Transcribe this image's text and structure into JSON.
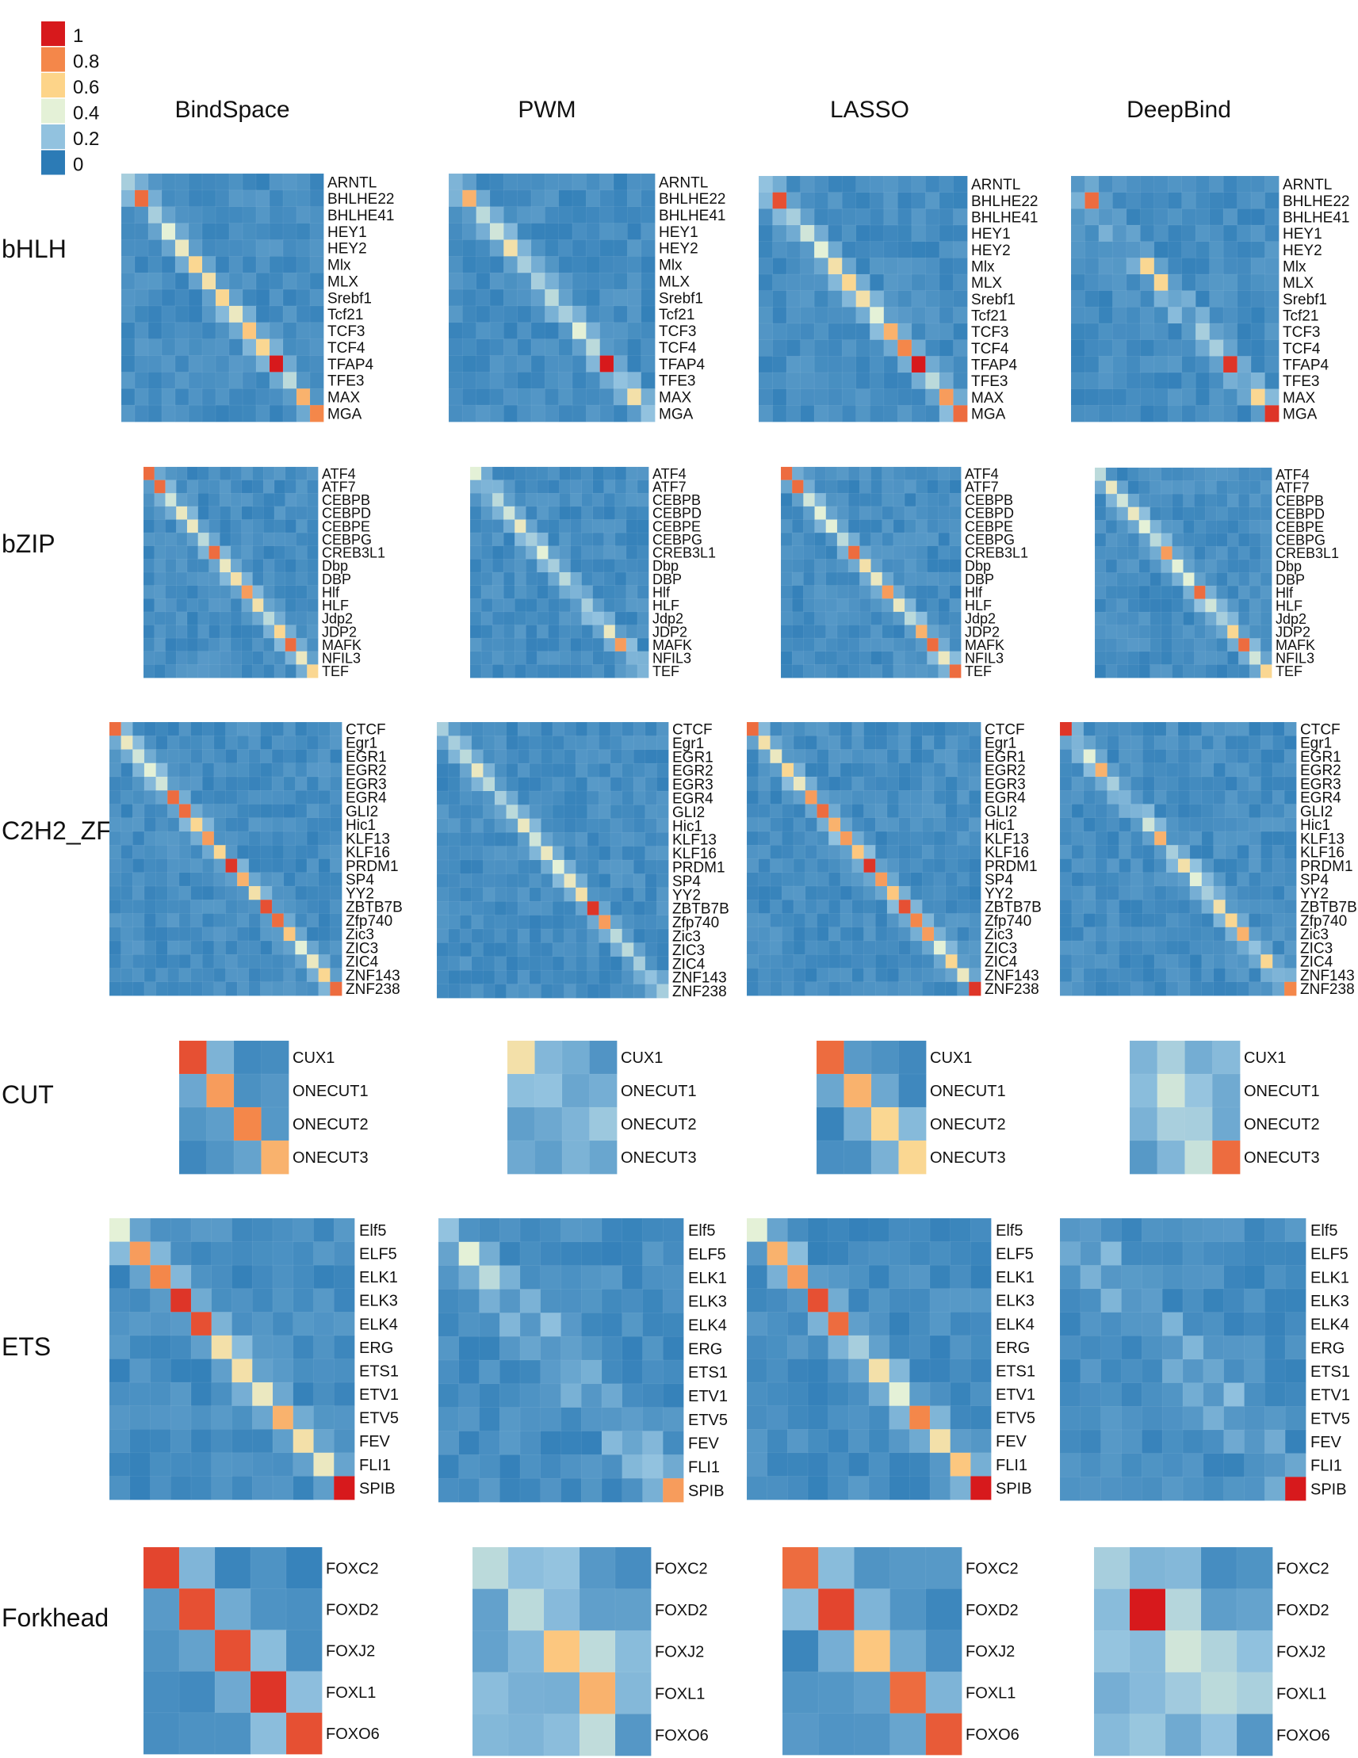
{
  "chart_data": {
    "type": "heatmap",
    "legend": {
      "ticks": [
        "1",
        "0.8",
        "0.6",
        "0.4",
        "0.2",
        "0"
      ],
      "colors": [
        "#d7191c",
        "#f4874a",
        "#fdd489",
        "#e4f1d7",
        "#92c2df",
        "#2c7bb6"
      ],
      "placement": "top-left"
    },
    "methods": [
      "BindSpace",
      "PWM",
      "LASSO",
      "DeepBind"
    ],
    "families": [
      {
        "name": "bHLH",
        "labels": [
          "ARNTL",
          "BHLHE22",
          "BHLHE41",
          "HEY1",
          "HEY2",
          "Mlx",
          "MLX",
          "Srebf1",
          "Tcf21",
          "TCF3",
          "TCF4",
          "TFAP4",
          "TFE3",
          "MAX",
          "MGA"
        ],
        "diag": [
          [
            0.3,
            0.85,
            0.3,
            0.45,
            0.5,
            0.6,
            0.55,
            0.6,
            0.5,
            0.65,
            0.6,
            1.0,
            0.35,
            0.7,
            0.8
          ],
          [
            0.2,
            0.7,
            0.35,
            0.4,
            0.55,
            0.3,
            0.3,
            0.35,
            0.3,
            0.45,
            0.35,
            1.0,
            0.25,
            0.55,
            0.25
          ],
          [
            0.25,
            0.9,
            0.3,
            0.4,
            0.45,
            0.55,
            0.6,
            0.55,
            0.45,
            0.7,
            0.8,
            1.0,
            0.35,
            0.75,
            0.85
          ],
          [
            0.1,
            0.85,
            0.1,
            0.1,
            0.1,
            0.6,
            0.6,
            0.15,
            0.1,
            0.3,
            0.3,
            0.95,
            0.15,
            0.6,
            0.95
          ]
        ]
      },
      {
        "name": "bZIP",
        "labels": [
          "ATF4",
          "ATF7",
          "CEBPB",
          "CEBPD",
          "CEBPE",
          "CEBPG",
          "CREB3L1",
          "Dbp",
          "DBP",
          "Hlf",
          "HLF",
          "Jdp2",
          "JDP2",
          "MAFK",
          "NFIL3",
          "TEF"
        ],
        "diag": [
          [
            0.85,
            0.85,
            0.4,
            0.5,
            0.5,
            0.35,
            0.85,
            0.5,
            0.55,
            0.75,
            0.55,
            0.35,
            0.6,
            0.85,
            0.5,
            0.6
          ],
          [
            0.45,
            0.2,
            0.35,
            0.4,
            0.5,
            0.3,
            0.45,
            0.3,
            0.35,
            0.2,
            0.3,
            0.25,
            0.5,
            0.75,
            0.2,
            0.2
          ],
          [
            0.85,
            0.85,
            0.4,
            0.45,
            0.45,
            0.35,
            0.85,
            0.55,
            0.5,
            0.75,
            0.5,
            0.35,
            0.7,
            0.85,
            0.5,
            0.85
          ],
          [
            0.35,
            0.5,
            0.4,
            0.5,
            0.45,
            0.35,
            0.75,
            0.45,
            0.45,
            0.85,
            0.4,
            0.3,
            0.6,
            0.85,
            0.4,
            0.6
          ]
        ]
      },
      {
        "name": "C2H2_ZF",
        "labels": [
          "CTCF",
          "Egr1",
          "EGR1",
          "EGR2",
          "EGR3",
          "EGR4",
          "GLI2",
          "Hic1",
          "KLF13",
          "KLF16",
          "PRDM1",
          "SP4",
          "YY2",
          "ZBTB7B",
          "Zfp740",
          "Zic3",
          "ZIC3",
          "ZIC4",
          "ZNF143",
          "ZNF238"
        ],
        "diag": [
          [
            0.85,
            0.5,
            0.4,
            0.45,
            0.4,
            0.85,
            0.85,
            0.6,
            0.75,
            0.6,
            0.95,
            0.7,
            0.55,
            0.9,
            0.85,
            0.65,
            0.45,
            0.5,
            0.6,
            0.85
          ],
          [
            0.3,
            0.3,
            0.35,
            0.5,
            0.35,
            0.3,
            0.35,
            0.5,
            0.4,
            0.5,
            0.45,
            0.5,
            0.55,
            0.95,
            0.75,
            0.35,
            0.35,
            0.3,
            0.25,
            0.3
          ],
          [
            0.85,
            0.55,
            0.5,
            0.6,
            0.5,
            0.75,
            0.85,
            0.7,
            0.75,
            0.65,
            0.95,
            0.75,
            0.65,
            0.9,
            0.8,
            0.75,
            0.45,
            0.6,
            0.5,
            0.95
          ],
          [
            0.95,
            0.2,
            0.45,
            0.7,
            0.3,
            0.2,
            0.2,
            0.4,
            0.7,
            0.3,
            0.55,
            0.45,
            0.3,
            0.55,
            0.6,
            0.7,
            0.25,
            0.6,
            0.2,
            0.8
          ]
        ]
      },
      {
        "name": "CUT",
        "labels": [
          "CUX1",
          "ONECUT1",
          "ONECUT2",
          "ONECUT3"
        ],
        "diag": [
          [
            0.9,
            0.75,
            0.8,
            0.7
          ],
          [
            0.55,
            0.25,
            0.2,
            0.15
          ],
          [
            0.85,
            0.7,
            0.6,
            0.6
          ],
          [
            0.2,
            0.4,
            0.3,
            0.85
          ]
        ]
      },
      {
        "name": "ETS",
        "labels": [
          "Elf5",
          "ELF5",
          "ELK1",
          "ELK3",
          "ELK4",
          "ERG",
          "ETS1",
          "ETV1",
          "ETV5",
          "FEV",
          "FLI1",
          "SPIB"
        ],
        "diag": [
          [
            0.45,
            0.75,
            0.8,
            0.95,
            0.9,
            0.55,
            0.55,
            0.5,
            0.7,
            0.55,
            0.5,
            1.0
          ],
          [
            0.25,
            0.45,
            0.35,
            0.1,
            0.1,
            0.1,
            0.15,
            0.1,
            0.1,
            0.15,
            0.25,
            0.75
          ],
          [
            0.45,
            0.7,
            0.75,
            0.9,
            0.85,
            0.3,
            0.55,
            0.45,
            0.8,
            0.55,
            0.65,
            1.0
          ],
          [
            0.1,
            0.1,
            0.1,
            0.1,
            0.1,
            0.1,
            0.1,
            0.1,
            0.1,
            0.1,
            0.1,
            1.0
          ]
        ]
      },
      {
        "name": "Forkhead",
        "labels": [
          "FOXC2",
          "FOXD2",
          "FOXJ2",
          "FOXL1",
          "FOXO6"
        ],
        "diag": [
          [
            0.92,
            0.9,
            0.9,
            0.95,
            0.9
          ],
          [
            0.35,
            0.35,
            0.65,
            0.7,
            0.1
          ],
          [
            0.85,
            0.92,
            0.65,
            0.85,
            0.88
          ],
          [
            0.3,
            1.0,
            0.4,
            0.35,
            0.1
          ]
        ]
      }
    ]
  }
}
